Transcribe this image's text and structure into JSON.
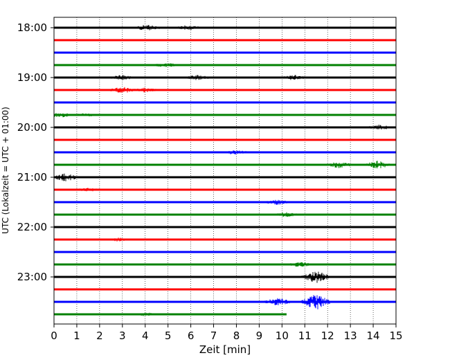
{
  "chart_data": {
    "type": "line",
    "title": "",
    "xlabel": "Zeit  [min]",
    "ylabel": "UTC (Lokalzeit = UTC + 01:00)",
    "xlim": [
      0,
      15
    ],
    "x_ticks": [
      "0",
      "1",
      "2",
      "3",
      "4",
      "5",
      "6",
      "7",
      "8",
      "9",
      "10",
      "11",
      "12",
      "13",
      "14",
      "15"
    ],
    "y_tick_labels": [
      "18:00",
      "19:00",
      "20:00",
      "21:00",
      "22:00",
      "23:00"
    ],
    "grid": "vertical-dotted",
    "series_colors": [
      "#000000",
      "#ff0000",
      "#0000ff",
      "#008000"
    ],
    "traces": [
      {
        "start": "18:00",
        "color": "#000000",
        "end_min": 15,
        "bursts": [
          {
            "at": 4.1,
            "amp": 5
          },
          {
            "at": 5.9,
            "amp": 4
          }
        ]
      },
      {
        "start": "18:15",
        "color": "#ff0000",
        "end_min": 15,
        "bursts": []
      },
      {
        "start": "18:30",
        "color": "#0000ff",
        "end_min": 15,
        "bursts": []
      },
      {
        "start": "18:45",
        "color": "#008000",
        "end_min": 15,
        "bursts": [
          {
            "at": 4.9,
            "amp": 4
          }
        ]
      },
      {
        "start": "19:00",
        "color": "#000000",
        "end_min": 15,
        "bursts": [
          {
            "at": 3.0,
            "amp": 4
          },
          {
            "at": 6.3,
            "amp": 4
          },
          {
            "at": 10.5,
            "amp": 4
          }
        ]
      },
      {
        "start": "19:15",
        "color": "#ff0000",
        "end_min": 15,
        "bursts": [
          {
            "at": 3.0,
            "amp": 5
          },
          {
            "at": 4.0,
            "amp": 4
          }
        ]
      },
      {
        "start": "19:30",
        "color": "#0000ff",
        "end_min": 15,
        "bursts": []
      },
      {
        "start": "19:45",
        "color": "#008000",
        "end_min": 15,
        "bursts": [
          {
            "at": 0.3,
            "amp": 4
          },
          {
            "at": 1.4,
            "amp": 3
          }
        ]
      },
      {
        "start": "20:00",
        "color": "#000000",
        "end_min": 15,
        "bursts": [
          {
            "at": 14.3,
            "amp": 4
          }
        ]
      },
      {
        "start": "20:15",
        "color": "#ff0000",
        "end_min": 15,
        "bursts": []
      },
      {
        "start": "20:30",
        "color": "#0000ff",
        "end_min": 15,
        "bursts": [
          {
            "at": 8.0,
            "amp": 4
          }
        ]
      },
      {
        "start": "20:45",
        "color": "#008000",
        "end_min": 15,
        "bursts": [
          {
            "at": 12.5,
            "amp": 5
          },
          {
            "at": 14.2,
            "amp": 6
          }
        ]
      },
      {
        "start": "21:00",
        "color": "#000000",
        "end_min": 15,
        "bursts": [
          {
            "at": 0.5,
            "amp": 6
          }
        ]
      },
      {
        "start": "21:15",
        "color": "#ff0000",
        "end_min": 15,
        "bursts": [
          {
            "at": 1.5,
            "amp": 3
          }
        ]
      },
      {
        "start": "21:30",
        "color": "#0000ff",
        "end_min": 15,
        "bursts": [
          {
            "at": 9.8,
            "amp": 4
          }
        ]
      },
      {
        "start": "21:45",
        "color": "#008000",
        "end_min": 15,
        "bursts": [
          {
            "at": 10.2,
            "amp": 4
          }
        ]
      },
      {
        "start": "22:00",
        "color": "#000000",
        "end_min": 15,
        "bursts": []
      },
      {
        "start": "22:15",
        "color": "#ff0000",
        "end_min": 15,
        "bursts": [
          {
            "at": 2.8,
            "amp": 3
          }
        ]
      },
      {
        "start": "22:30",
        "color": "#0000ff",
        "end_min": 15,
        "bursts": []
      },
      {
        "start": "22:45",
        "color": "#008000",
        "end_min": 15,
        "bursts": [
          {
            "at": 10.8,
            "amp": 4
          }
        ]
      },
      {
        "start": "23:00",
        "color": "#000000",
        "end_min": 15,
        "bursts": [
          {
            "at": 11.5,
            "amp": 9
          }
        ]
      },
      {
        "start": "23:15",
        "color": "#ff0000",
        "end_min": 15,
        "bursts": []
      },
      {
        "start": "23:30",
        "color": "#0000ff",
        "end_min": 15,
        "bursts": [
          {
            "at": 9.8,
            "amp": 6
          },
          {
            "at": 11.5,
            "amp": 12
          }
        ]
      },
      {
        "start": "23:45",
        "color": "#008000",
        "end_min": 10.2,
        "bursts": [
          {
            "at": 4.0,
            "amp": 3
          }
        ]
      }
    ]
  }
}
